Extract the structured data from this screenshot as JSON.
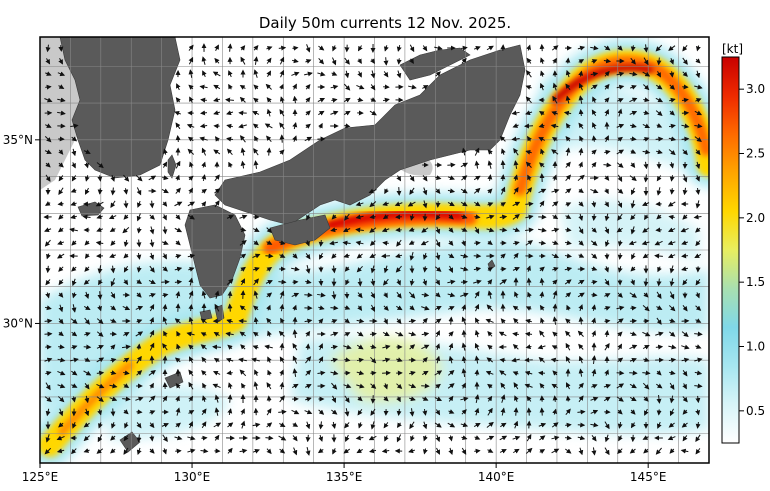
{
  "title": "Daily 50m currents 12 Nov. 2025.",
  "map": {
    "lon_range": [
      125,
      147
    ],
    "lat_range": [
      26.2,
      37.8
    ],
    "lon_labels": [
      {
        "lon": 125,
        "text": "125°E"
      },
      {
        "lon": 130,
        "text": "130°E"
      },
      {
        "lon": 135,
        "text": "135°E"
      },
      {
        "lon": 140,
        "text": "140°E"
      },
      {
        "lon": 145,
        "text": "145°E"
      }
    ],
    "lat_labels": [
      {
        "lat": 35,
        "text": "35°N"
      },
      {
        "lat": 30,
        "text": "30°N"
      }
    ],
    "grid_step_deg": 1,
    "colors": {
      "land": "#5a5a5a",
      "shelf": "#c9c9c9",
      "ocean": "#ffffff",
      "arrow": "#111111"
    }
  },
  "colorbar": {
    "unit_label": "[kt]",
    "range": [
      0.25,
      3.25
    ],
    "tick_labels": [
      "0.5",
      "1.0",
      "1.5",
      "2.0",
      "2.5",
      "3.0"
    ],
    "tick_values": [
      0.5,
      1.0,
      1.5,
      2.0,
      2.5,
      3.0
    ],
    "colors": [
      "#ffffff",
      "#d8f4f8",
      "#a6e6f0",
      "#80d8e8",
      "#a8e0b0",
      "#e8ee60",
      "#ffd700",
      "#ffa500",
      "#ff6a00",
      "#ee2a00",
      "#c80000"
    ]
  }
}
